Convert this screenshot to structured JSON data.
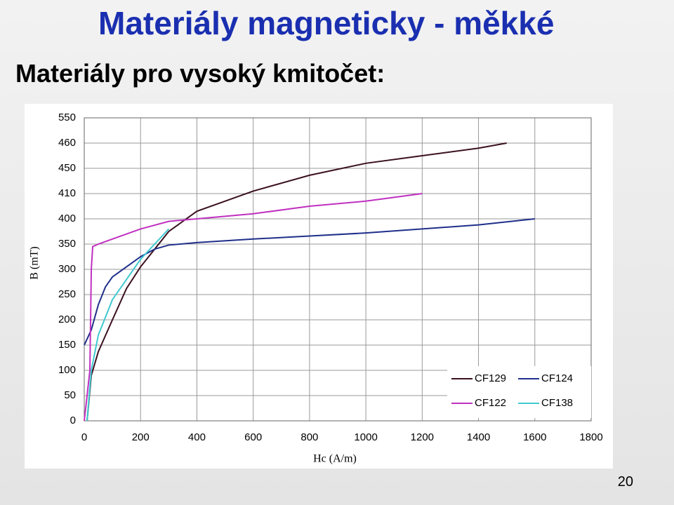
{
  "slide": {
    "title": "Materiály magneticky - měkké",
    "subtitle": "Materiály pro vysoký kmitočet:",
    "page_number": "20"
  },
  "chart_data": {
    "type": "line",
    "xlabel": "Hc (A/m)",
    "ylabel": "B (mT)",
    "xlim": [
      0,
      1800
    ],
    "xticks": [
      0,
      200,
      400,
      600,
      800,
      1000,
      1200,
      1400,
      1600,
      1800
    ],
    "ylim": [
      0,
      550
    ],
    "yticks": [
      0,
      50,
      100,
      150,
      200,
      250,
      300,
      350,
      400,
      410,
      450,
      460,
      550
    ],
    "grid": true,
    "legend": "lower right",
    "series": [
      {
        "name": "CF129",
        "color": "#3a1020",
        "x": [
          10,
          25,
          50,
          100,
          150,
          200,
          250,
          300,
          400,
          500,
          600,
          800,
          1000,
          1200,
          1400,
          1500
        ],
        "values": [
          0,
          90,
          137,
          200,
          262,
          305,
          340,
          375,
          403,
          407,
          414,
          439,
          452,
          455,
          458,
          460
        ]
      },
      {
        "name": "CF124",
        "color": "#1f2f8a",
        "x": [
          0,
          25,
          50,
          75,
          100,
          150,
          200,
          250,
          300,
          400,
          600,
          800,
          1000,
          1200,
          1400,
          1600
        ],
        "values": [
          150,
          180,
          230,
          265,
          285,
          305,
          325,
          340,
          348,
          353,
          360,
          366,
          372,
          380,
          388,
          400
        ]
      },
      {
        "name": "CF122",
        "color": "#c030c0",
        "x": [
          0,
          20,
          25,
          30,
          50,
          100,
          200,
          300,
          400,
          600,
          800,
          1000,
          1200
        ],
        "values": [
          0,
          100,
          300,
          345,
          350,
          360,
          380,
          395,
          400,
          402,
          405,
          407,
          410
        ]
      },
      {
        "name": "CF138",
        "color": "#40c8d0",
        "x": [
          10,
          25,
          50,
          100,
          150,
          200,
          250,
          300
        ],
        "values": [
          0,
          100,
          170,
          240,
          280,
          320,
          350,
          380
        ]
      }
    ]
  }
}
